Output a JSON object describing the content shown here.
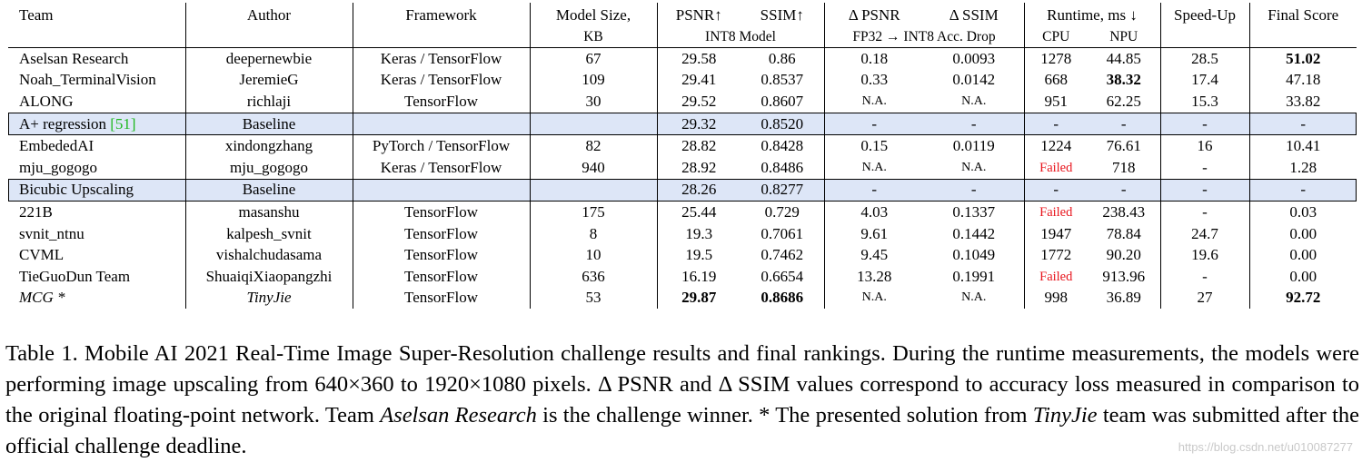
{
  "header": {
    "team": "Team",
    "author": "Author",
    "framework": "Framework",
    "model_size_line1": "Model Size,",
    "model_size_line2": "KB",
    "psnr": "PSNR↑",
    "ssim": "SSIM↑",
    "int8_model": "INT8 Model",
    "delta_psnr": "Δ PSNR",
    "delta_ssim": "Δ SSIM",
    "acc_drop": "FP32 → INT8 Acc. Drop",
    "runtime": "Runtime, ms ↓",
    "cpu": "CPU",
    "npu": "NPU",
    "speedup": "Speed-Up",
    "final_score": "Final Score"
  },
  "rows": [
    {
      "team": "Aselsan Research",
      "author": "deepernewbie",
      "framework": "Keras / TensorFlow",
      "size": "67",
      "psnr": "29.58",
      "ssim": "0.86",
      "dpsnr": "0.18",
      "dssim": "0.0093",
      "cpu": "1278",
      "npu": "44.85",
      "speedup": "28.5",
      "score": "51.02"
    },
    {
      "team": "Noah_TerminalVision",
      "author": "JeremieG",
      "framework": "Keras / TensorFlow",
      "size": "109",
      "psnr": "29.41",
      "ssim": "0.8537",
      "dpsnr": "0.33",
      "dssim": "0.0142",
      "cpu": "668",
      "npu": "38.32",
      "speedup": "17.4",
      "score": "47.18"
    },
    {
      "team": "ALONG",
      "author": "richlaji",
      "framework": "TensorFlow",
      "size": "30",
      "psnr": "29.52",
      "ssim": "0.8607",
      "dpsnr": "N.A.",
      "dssim": "N.A.",
      "cpu": "951",
      "npu": "62.25",
      "speedup": "15.3",
      "score": "33.82"
    },
    {
      "team": "A+ regression",
      "cite": "[51]",
      "author": "Baseline",
      "framework": "",
      "size": "",
      "psnr": "29.32",
      "ssim": "0.8520",
      "dpsnr": "-",
      "dssim": "-",
      "cpu": "-",
      "npu": "-",
      "speedup": "-",
      "score": "-"
    },
    {
      "team": "EmbededAI",
      "author": "xindongzhang",
      "framework": "PyTorch / TensorFlow",
      "size": "82",
      "psnr": "28.82",
      "ssim": "0.8428",
      "dpsnr": "0.15",
      "dssim": "0.0119",
      "cpu": "1224",
      "npu": "76.61",
      "speedup": "16",
      "score": "10.41"
    },
    {
      "team": "mju_gogogo",
      "author": "mju_gogogo",
      "framework": "Keras / TensorFlow",
      "size": "940",
      "psnr": "28.92",
      "ssim": "0.8486",
      "dpsnr": "N.A.",
      "dssim": "N.A.",
      "cpu": "Failed",
      "npu": "718",
      "speedup": "-",
      "score": "1.28"
    },
    {
      "team": "Bicubic Upscaling",
      "author": "Baseline",
      "framework": "",
      "size": "",
      "psnr": "28.26",
      "ssim": "0.8277",
      "dpsnr": "-",
      "dssim": "-",
      "cpu": "-",
      "npu": "-",
      "speedup": "-",
      "score": "-"
    },
    {
      "team": "221B",
      "author": "masanshu",
      "framework": "TensorFlow",
      "size": "175",
      "psnr": "25.44",
      "ssim": "0.729",
      "dpsnr": "4.03",
      "dssim": "0.1337",
      "cpu": "Failed",
      "npu": "238.43",
      "speedup": "-",
      "score": "0.03"
    },
    {
      "team": "svnit_ntnu",
      "author": "kalpesh_svnit",
      "framework": "TensorFlow",
      "size": "8",
      "psnr": "19.3",
      "ssim": "0.7061",
      "dpsnr": "9.61",
      "dssim": "0.1442",
      "cpu": "1947",
      "npu": "78.84",
      "speedup": "24.7",
      "score": "0.00"
    },
    {
      "team": "CVML",
      "author": "vishalchudasama",
      "framework": "TensorFlow",
      "size": "10",
      "psnr": "19.5",
      "ssim": "0.7462",
      "dpsnr": "9.45",
      "dssim": "0.1049",
      "cpu": "1772",
      "npu": "90.20",
      "speedup": "19.6",
      "score": "0.00"
    },
    {
      "team": "TieGuoDun Team",
      "author": "ShuaiqiXiaopangzhi",
      "framework": "TensorFlow",
      "size": "636",
      "psnr": "16.19",
      "ssim": "0.6654",
      "dpsnr": "13.28",
      "dssim": "0.1991",
      "cpu": "Failed",
      "npu": "913.96",
      "speedup": "-",
      "score": "0.00"
    },
    {
      "team": "MCG *",
      "author": "TinyJie",
      "framework": "TensorFlow",
      "size": "53",
      "psnr": "29.87",
      "ssim": "0.8686",
      "dpsnr": "N.A.",
      "dssim": "N.A.",
      "cpu": "998",
      "npu": "36.89",
      "speedup": "27",
      "score": "92.72"
    }
  ],
  "caption": {
    "part1": "Table 1. Mobile AI 2021 Real-Time Image Super-Resolution challenge results and final rankings. During the runtime measurements, the models were performing image upscaling from 640×360 to 1920×1080 pixels. Δ PSNR and Δ SSIM values correspond to accuracy loss measured in comparison to the original floating-point network. Team ",
    "team_name": "Aselsan Research",
    "part2": " is the challenge winner. * The presented solution from ",
    "team_name2": "TinyJie",
    "part3": " team was submitted after the official challenge deadline."
  },
  "watermark": "https://blog.csdn.net/u010087277"
}
